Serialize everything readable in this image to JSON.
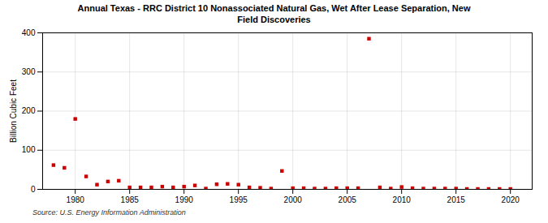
{
  "chart_data": {
    "type": "scatter",
    "title": "Annual Texas - RRC District 10 Nonassociated Natural Gas, Wet After Lease Separation, New\nField Discoveries",
    "ylabel": "Billion Cubic Feet",
    "source": "Source: U.S. Energy Information Administration",
    "x": [
      1978,
      1979,
      1980,
      1981,
      1982,
      1983,
      1984,
      1985,
      1986,
      1987,
      1988,
      1989,
      1990,
      1991,
      1992,
      1993,
      1994,
      1995,
      1996,
      1997,
      1998,
      1999,
      2000,
      2001,
      2002,
      2003,
      2004,
      2005,
      2006,
      2007,
      2008,
      2009,
      2010,
      2011,
      2012,
      2013,
      2014,
      2015,
      2016,
      2017,
      2018,
      2019,
      2020
    ],
    "values": [
      62,
      55,
      180,
      33,
      12,
      20,
      22,
      5,
      5,
      5,
      7,
      5,
      7,
      10,
      2,
      13,
      14,
      12,
      5,
      4,
      2,
      47,
      3,
      3,
      2,
      2,
      3,
      3,
      3,
      385,
      5,
      2,
      6,
      3,
      2,
      2,
      2,
      2,
      1,
      1,
      1,
      1,
      1
    ],
    "color": "#cc0000",
    "marker": "square",
    "xlim": [
      1977,
      2022
    ],
    "ylim": [
      0,
      400
    ],
    "xticks": [
      1980,
      1985,
      1990,
      1995,
      2000,
      2005,
      2010,
      2015,
      2020
    ],
    "yticks": [
      0,
      100,
      200,
      300,
      400
    ],
    "grid": true
  }
}
